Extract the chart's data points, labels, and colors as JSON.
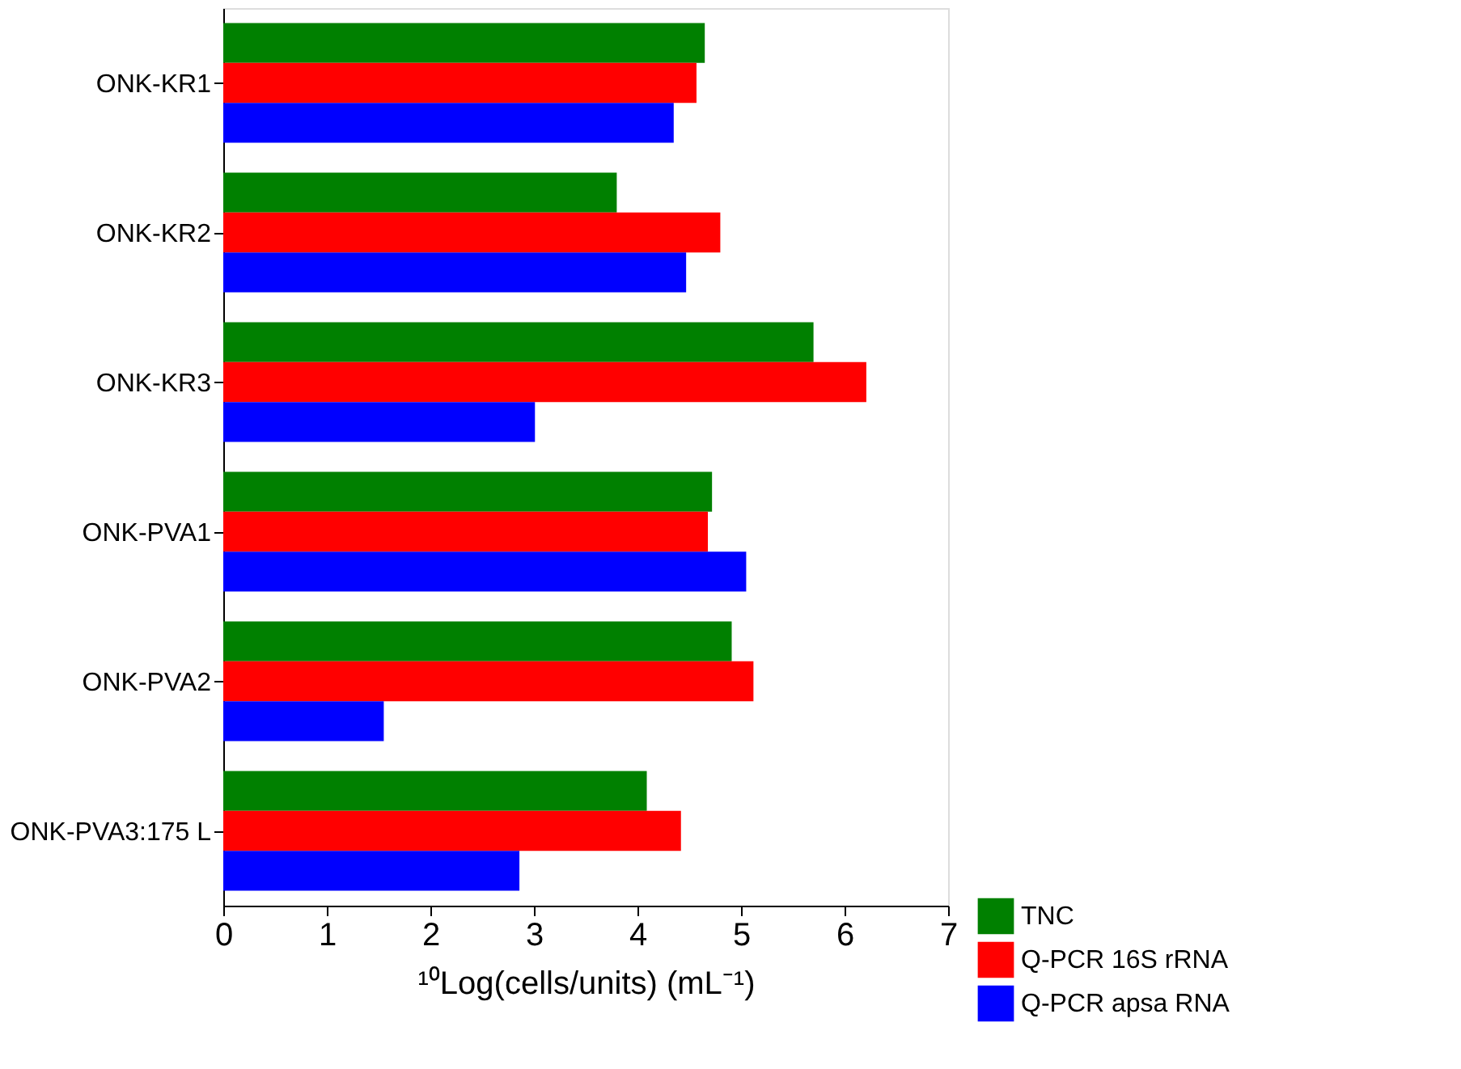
{
  "chart_data": {
    "type": "bar",
    "orientation": "horizontal",
    "xlabel": "¹⁰Log(cells/units) (mL⁻¹)",
    "categories": [
      "ONK-KR1",
      "ONK-KR2",
      "ONK-KR3",
      "ONK-PVA1",
      "ONK-PVA2",
      "ONK-PVA3:175 L"
    ],
    "series": [
      {
        "name": "TNC",
        "color": "#008000",
        "values": [
          4.65,
          3.8,
          5.7,
          4.72,
          4.91,
          4.09
        ]
      },
      {
        "name": "Q-PCR 16S rRNA",
        "color": "#ff0000",
        "values": [
          4.57,
          4.8,
          6.21,
          4.68,
          5.12,
          4.42
        ]
      },
      {
        "name": "Q-PCR apsa RNA",
        "color": "#0000ff",
        "values": [
          4.35,
          4.47,
          3.01,
          5.05,
          1.55,
          2.86
        ]
      }
    ],
    "xlim": [
      0,
      7
    ],
    "xticks": [
      0,
      1,
      2,
      3,
      4,
      5,
      6,
      7
    ],
    "grid": false,
    "legend": "bottom right"
  }
}
